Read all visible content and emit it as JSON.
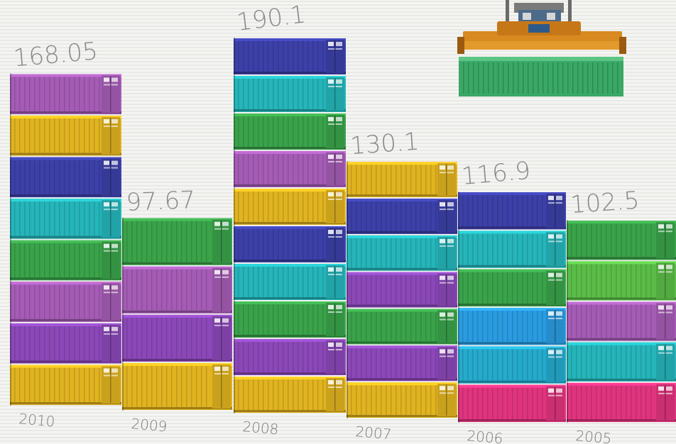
{
  "chart_data": {
    "type": "bar",
    "categories": [
      "2010",
      "2009",
      "2008",
      "2007",
      "2006",
      "2005"
    ],
    "values": [
      168.05,
      97.67,
      190.1,
      130.1,
      116.9,
      102.5
    ],
    "value_labels": [
      "168.05",
      "97.67",
      "190.1",
      "130.1",
      "116.9",
      "102.5"
    ],
    "title": "",
    "xlabel": "",
    "ylabel": "",
    "ylim": [
      0,
      200
    ],
    "legend": "none",
    "grid": false,
    "bar_style": "stacked shipping containers",
    "container_colors": {
      "2010": [
        "#e0b320",
        "#8b48b8",
        "#a55cb5",
        "#3aa34a",
        "#25b5ba",
        "#3c40a8",
        "#e0b320",
        "#a55cb5"
      ],
      "2009": [
        "#e0b320",
        "#8b48b8",
        "#a55cb5",
        "#3aa34a"
      ],
      "2008": [
        "#e0b320",
        "#8b48b8",
        "#3aa34a",
        "#25b5ba",
        "#3c40a8",
        "#e0b320",
        "#a55cb5",
        "#3aa34a",
        "#25b5ba",
        "#3c40a8"
      ],
      "2007": [
        "#e0b320",
        "#8b48b8",
        "#3aa34a",
        "#8b48b8",
        "#25b5ba",
        "#3c40a8",
        "#e0b320"
      ],
      "2006": [
        "#e0347e",
        "#25aacc",
        "#2a9be0",
        "#3aa34a",
        "#25b5ba",
        "#3c40a8"
      ],
      "2005": [
        "#e0347e",
        "#25b5ba",
        "#a55cb5",
        "#5bbd48",
        "#3aa34a"
      ]
    }
  },
  "decoration": {
    "icon": "crane-spreader-lifting-container-icon",
    "lifted_container_color": "#3aa866",
    "spreader_color": "#d88a20"
  }
}
